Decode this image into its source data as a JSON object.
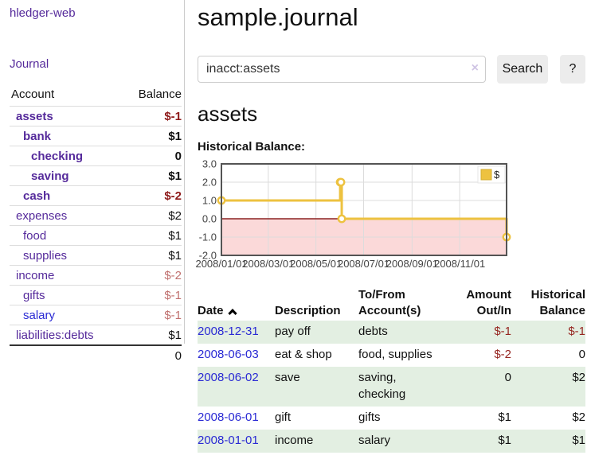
{
  "app": {
    "name": "hledger-web"
  },
  "sidebar": {
    "journal_link": "Journal",
    "accounts": {
      "header_account": "Account",
      "header_balance": "Balance",
      "rows": [
        {
          "name": "assets",
          "balance": "$-1",
          "depth": 0,
          "bold": true,
          "neg": "dark"
        },
        {
          "name": "bank",
          "balance": "$1",
          "depth": 1,
          "bold": true,
          "neg": "none"
        },
        {
          "name": "checking",
          "balance": "0",
          "depth": 2,
          "bold": true,
          "neg": "none"
        },
        {
          "name": "saving",
          "balance": "$1",
          "depth": 2,
          "bold": true,
          "neg": "none"
        },
        {
          "name": "cash",
          "balance": "$-2",
          "depth": 1,
          "bold": true,
          "neg": "dark"
        },
        {
          "name": "expenses",
          "balance": "$2",
          "depth": 0,
          "bold": false,
          "neg": "none"
        },
        {
          "name": "food",
          "balance": "$1",
          "depth": 1,
          "bold": false,
          "neg": "none"
        },
        {
          "name": "supplies",
          "balance": "$1",
          "depth": 1,
          "bold": false,
          "neg": "none"
        },
        {
          "name": "income",
          "balance": "$-2",
          "depth": 0,
          "bold": false,
          "neg": "muted"
        },
        {
          "name": "gifts",
          "balance": "$-1",
          "depth": 1,
          "bold": false,
          "neg": "muted"
        },
        {
          "name": "salary",
          "balance": "$-1",
          "depth": 1,
          "bold": false,
          "neg": "muted",
          "link": "blue"
        },
        {
          "name": "liabilities:debts",
          "balance": "$1",
          "depth": 0,
          "bold": false,
          "neg": "none"
        }
      ],
      "total": "0"
    }
  },
  "header": {
    "title": "sample.journal"
  },
  "search": {
    "value": "inacct:assets",
    "clear_icon": "×",
    "button_label": "Search",
    "help_label": "?"
  },
  "account_page": {
    "heading": "assets",
    "chart_label": "Historical Balance:"
  },
  "chart_data": {
    "type": "line",
    "title": "Historical Balance",
    "step": true,
    "series": [
      {
        "name": "$",
        "color": "#edc240",
        "points": [
          {
            "date": "2008-01-01",
            "value": 1
          },
          {
            "date": "2008-06-01",
            "value": 2
          },
          {
            "date": "2008-06-02",
            "value": 2
          },
          {
            "date": "2008-06-03",
            "value": 0
          },
          {
            "date": "2008-12-31",
            "value": -1
          }
        ]
      }
    ],
    "x_range": [
      "2008-01-01",
      "2008-12-31"
    ],
    "x_ticks": [
      "2008/01/01",
      "2008/03/01",
      "2008/05/01",
      "2008/07/01",
      "2008/09/01",
      "2008/11/01"
    ],
    "y_ticks": [
      "3.0",
      "2.0",
      "1.0",
      "0.0",
      "-1.0",
      "-2.0"
    ],
    "ylim": [
      -2,
      3
    ],
    "grid": true,
    "legend_position": "top-right",
    "negative_region_color": "#fbd9d9",
    "zero_line_color": "#8b2222",
    "border_color": "#545454",
    "grid_color": "#dcdcdc",
    "tick_label_color": "#444444"
  },
  "register": {
    "headers": {
      "date": "Date",
      "description": "Description",
      "tofrom_line1": "To/From",
      "tofrom_line2": "Account(s)",
      "amount_line1": "Amount",
      "amount_line2": "Out/In",
      "balance_line1": "Historical",
      "balance_line2": "Balance"
    },
    "rows": [
      {
        "date": "2008-12-31",
        "description": "pay off",
        "accounts": "debts",
        "amount": "$-1",
        "amount_neg": true,
        "balance": "$-1",
        "balance_neg": true
      },
      {
        "date": "2008-06-03",
        "description": "eat & shop",
        "accounts": "food, supplies",
        "amount": "$-2",
        "amount_neg": true,
        "balance": "0",
        "balance_neg": false
      },
      {
        "date": "2008-06-02",
        "description": "save",
        "accounts": "saving, checking",
        "amount": "0",
        "amount_neg": false,
        "balance": "$2",
        "balance_neg": false
      },
      {
        "date": "2008-06-01",
        "description": "gift",
        "accounts": "gifts",
        "amount": "$1",
        "amount_neg": false,
        "balance": "$2",
        "balance_neg": false
      },
      {
        "date": "2008-01-01",
        "description": "income",
        "accounts": "salary",
        "amount": "$1",
        "amount_neg": false,
        "balance": "$1",
        "balance_neg": false
      }
    ]
  }
}
